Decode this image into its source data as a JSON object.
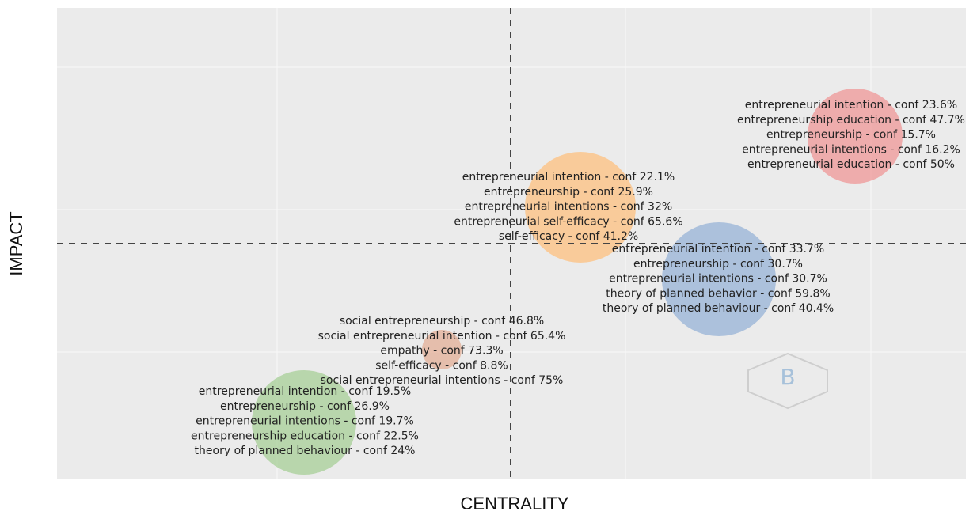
{
  "axes": {
    "x_label": "CENTRALITY",
    "y_label": "IMPACT"
  },
  "clusters": [
    {
      "color": "rgba(240,130,130,0.6)",
      "lines": [
        "entrepreneurial intention - conf 23.6%",
        "entrepreneurship education - conf 47.7%",
        "entrepreneurship - conf 15.7%",
        "entrepreneurial intentions - conf 16.2%",
        "entrepreneurial education - conf 50%"
      ]
    },
    {
      "color": "rgba(255,190,120,0.7)",
      "lines": [
        "entrepreneurial intention - conf 22.1%",
        "entrepreneurship - conf 25.9%",
        "entrepreneurial intentions - conf 32%",
        "entrepreneurial self-efficacy - conf 65.6%",
        "self-efficacy - conf 41.2%"
      ]
    },
    {
      "color": "rgba(130,165,210,0.6)",
      "lines": [
        "entrepreneurial intention - conf 33.7%",
        "entrepreneurship - conf 30.7%",
        "entrepreneurial intentions - conf 30.7%",
        "theory of planned behavior - conf 59.8%",
        "theory of planned behaviour - conf 40.4%"
      ]
    },
    {
      "color": "rgba(225,160,130,0.6)",
      "lines": [
        "social entrepreneurship - conf 46.8%",
        "social entrepreneurial intention - conf 65.4%",
        "empathy - conf 73.3%",
        "self-efficacy - conf 8.8%",
        "social entrepreneurial intentions - conf 75%"
      ]
    },
    {
      "color": "rgba(150,200,130,0.6)",
      "lines": [
        "entrepreneurial intention - conf 19.5%",
        "entrepreneurship - conf 26.9%",
        "entrepreneurial intentions - conf 19.7%",
        "entrepreneurship education - conf 22.5%",
        "theory of planned behaviour - conf 24%"
      ]
    }
  ]
}
